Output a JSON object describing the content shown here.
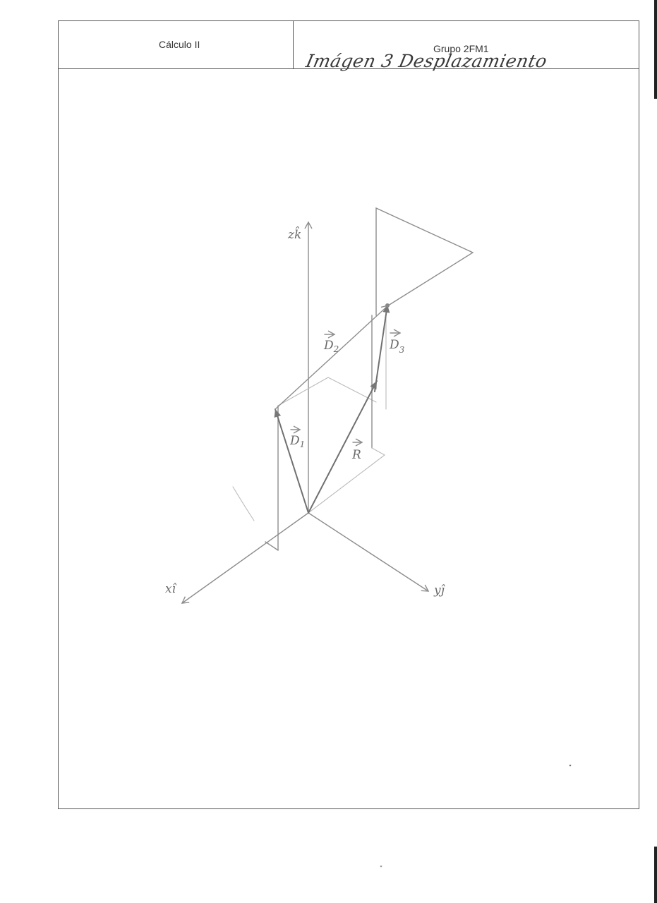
{
  "header": {
    "course": "Cálculo II",
    "group": "Grupo 2FM1",
    "handwritten_title": "Imágen 3 Desplazamiento"
  },
  "diagram": {
    "axes": {
      "z": {
        "letter": "z",
        "unit": "k̂"
      },
      "x": {
        "letter": "x",
        "unit": "î"
      },
      "y": {
        "letter": "y",
        "unit": "ĵ"
      }
    },
    "vectors": {
      "d1": {
        "letter": "D",
        "sub": "1"
      },
      "d2": {
        "letter": "D",
        "sub": "2"
      },
      "d3": {
        "letter": "D",
        "sub": "3"
      },
      "r": {
        "letter": "R",
        "sub": ""
      }
    },
    "colors": {
      "pencil": "#8d8d8d",
      "pencil_dark": "#707070",
      "pencil_light": "#bbbbbb"
    }
  }
}
